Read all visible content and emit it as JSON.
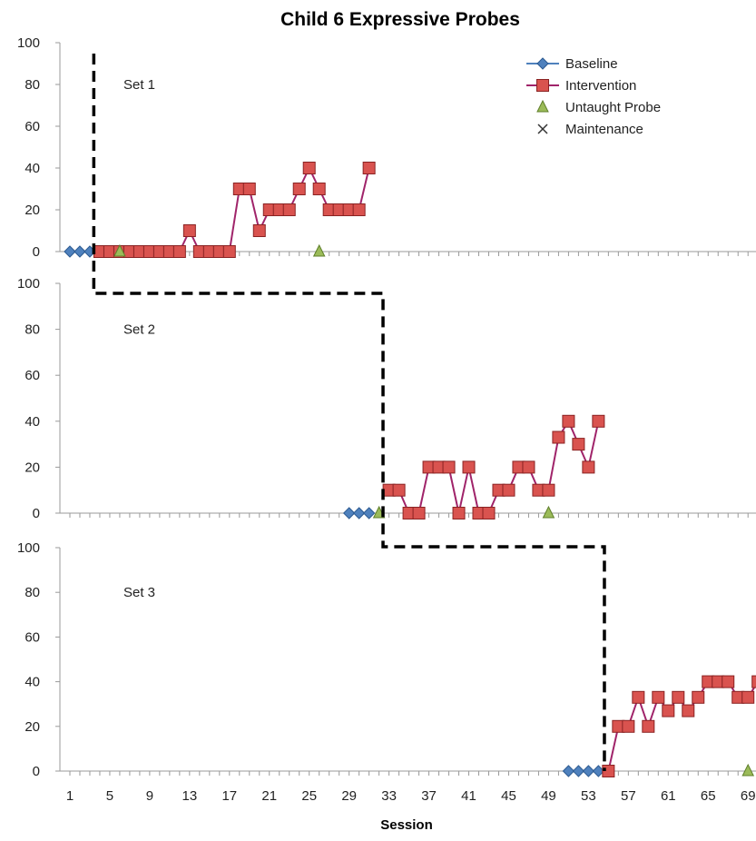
{
  "chart_data": {
    "type": "line",
    "title": "Child 6 Expressive Probes",
    "xlabel": "Session",
    "ylabel": "",
    "xlim": [
      0,
      69.8
    ],
    "ylim": [
      0,
      100
    ],
    "y_ticks": [
      0,
      20,
      40,
      60,
      80,
      100
    ],
    "x_ticks": [
      1,
      5,
      9,
      13,
      17,
      21,
      25,
      29,
      33,
      37,
      41,
      45,
      49,
      53,
      57,
      61,
      65,
      69
    ],
    "legend": {
      "position": "top-right",
      "entries": [
        "Baseline",
        "Intervention",
        "Untaught Probe",
        "Maintenance"
      ]
    },
    "colors": {
      "baseline": "#4f81bd",
      "intervention_fill": "#d9534f",
      "intervention_line": "#a0246a",
      "untaught": "#9bbb59",
      "phase_line": "#000000"
    },
    "panels": [
      {
        "label": "Set 1",
        "phase_change_after": 3.4,
        "series": [
          {
            "name": "Baseline",
            "x": [
              1,
              2,
              3
            ],
            "y": [
              0,
              0,
              0
            ]
          },
          {
            "name": "Intervention",
            "x": [
              4,
              5,
              6,
              7,
              8,
              9,
              10,
              11,
              12,
              13,
              14,
              15,
              16,
              17,
              18,
              19,
              20,
              21,
              22,
              23,
              24,
              25,
              26,
              27,
              28,
              29,
              30,
              31
            ],
            "y": [
              0,
              0,
              0,
              0,
              0,
              0,
              0,
              0,
              0,
              10,
              0,
              0,
              0,
              0,
              30,
              30,
              10,
              20,
              20,
              20,
              30,
              40,
              30,
              20,
              20,
              20,
              20,
              40
            ]
          },
          {
            "name": "Untaught Probe",
            "x": [
              6,
              26
            ],
            "y": [
              0,
              0
            ]
          },
          {
            "name": "Maintenance",
            "x": [],
            "y": []
          }
        ]
      },
      {
        "label": "Set 2",
        "phase_change_after": 32.4,
        "series": [
          {
            "name": "Baseline",
            "x": [
              29,
              30,
              31
            ],
            "y": [
              0,
              0,
              0
            ]
          },
          {
            "name": "Intervention",
            "x": [
              33,
              34,
              35,
              36,
              37,
              38,
              39,
              40,
              41,
              42,
              43,
              44,
              45,
              46,
              47,
              48,
              49,
              50,
              51,
              52,
              53,
              54
            ],
            "y": [
              10,
              10,
              0,
              0,
              20,
              20,
              20,
              0,
              20,
              0,
              0,
              10,
              10,
              20,
              20,
              10,
              10,
              33,
              40,
              30,
              20,
              40
            ]
          },
          {
            "name": "Untaught Probe",
            "x": [
              32,
              49
            ],
            "y": [
              0,
              0
            ]
          },
          {
            "name": "Maintenance",
            "x": [],
            "y": []
          }
        ]
      },
      {
        "label": "Set 3",
        "phase_change_after": 54.6,
        "series": [
          {
            "name": "Baseline",
            "x": [
              51,
              52,
              53,
              54
            ],
            "y": [
              0,
              0,
              0,
              0
            ]
          },
          {
            "name": "Intervention",
            "x": [
              55,
              56,
              57,
              58,
              59,
              60,
              61,
              62,
              63,
              64,
              65,
              66,
              67,
              68,
              69,
              70
            ],
            "y": [
              0,
              20,
              20,
              33,
              20,
              33,
              27,
              33,
              27,
              33,
              40,
              40,
              40,
              33,
              33,
              40
            ]
          },
          {
            "name": "Untaught Probe",
            "x": [
              69
            ],
            "y": [
              0
            ]
          },
          {
            "name": "Maintenance",
            "x": [],
            "y": []
          }
        ]
      }
    ]
  }
}
